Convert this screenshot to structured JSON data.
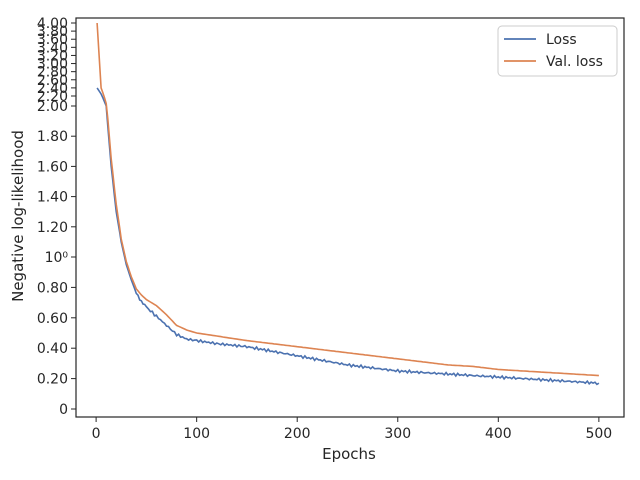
{
  "chart_data": {
    "type": "line",
    "xlabel": "Epochs",
    "ylabel": "Negative log-likelihood",
    "xlim": [
      -20,
      525
    ],
    "xticks": [
      0,
      100,
      200,
      300,
      400,
      500
    ],
    "xtick_labels": [
      "0",
      "100",
      "200",
      "300",
      "400",
      "500"
    ],
    "yscale": "symlog-like",
    "yticks": [
      0,
      0.2,
      0.4,
      0.6,
      0.8,
      1.0,
      1.2,
      1.4,
      1.6,
      1.8,
      2.0,
      2.2,
      2.4,
      2.6,
      2.8,
      3.0,
      3.2,
      3.4,
      3.6,
      3.8,
      4.0
    ],
    "ytick_labels": [
      "0",
      "0.20",
      "0.40",
      "0.60",
      "0.80",
      "10⁰",
      "1.20",
      "1.40",
      "1.60",
      "1.80",
      "2.00",
      "2.20",
      "2.40",
      "2.60",
      "2.80",
      "3.00",
      "3.20",
      "3.40",
      "3.60",
      "3.80",
      "4.00"
    ],
    "grid": false,
    "legend_position": "top-right",
    "x": [
      1,
      5,
      10,
      15,
      20,
      25,
      30,
      35,
      40,
      45,
      50,
      60,
      70,
      80,
      90,
      100,
      120,
      150,
      175,
      200,
      225,
      250,
      275,
      300,
      325,
      350,
      375,
      400,
      425,
      450,
      475,
      500
    ],
    "series": [
      {
        "name": "Loss",
        "color": "#4c72b0",
        "values": [
          2.4,
          2.25,
          2.0,
          1.6,
          1.3,
          1.1,
          0.95,
          0.85,
          0.76,
          0.71,
          0.67,
          0.61,
          0.55,
          0.49,
          0.46,
          0.45,
          0.43,
          0.41,
          0.38,
          0.35,
          0.32,
          0.29,
          0.27,
          0.25,
          0.24,
          0.23,
          0.22,
          0.21,
          0.2,
          0.19,
          0.18,
          0.17
        ]
      },
      {
        "name": "Val. loss",
        "color": "#dd8452",
        "values": [
          4.0,
          2.4,
          2.05,
          1.65,
          1.35,
          1.12,
          0.97,
          0.87,
          0.79,
          0.75,
          0.72,
          0.68,
          0.62,
          0.55,
          0.52,
          0.5,
          0.48,
          0.45,
          0.43,
          0.41,
          0.39,
          0.37,
          0.35,
          0.33,
          0.31,
          0.29,
          0.28,
          0.26,
          0.25,
          0.24,
          0.23,
          0.22
        ]
      }
    ]
  }
}
